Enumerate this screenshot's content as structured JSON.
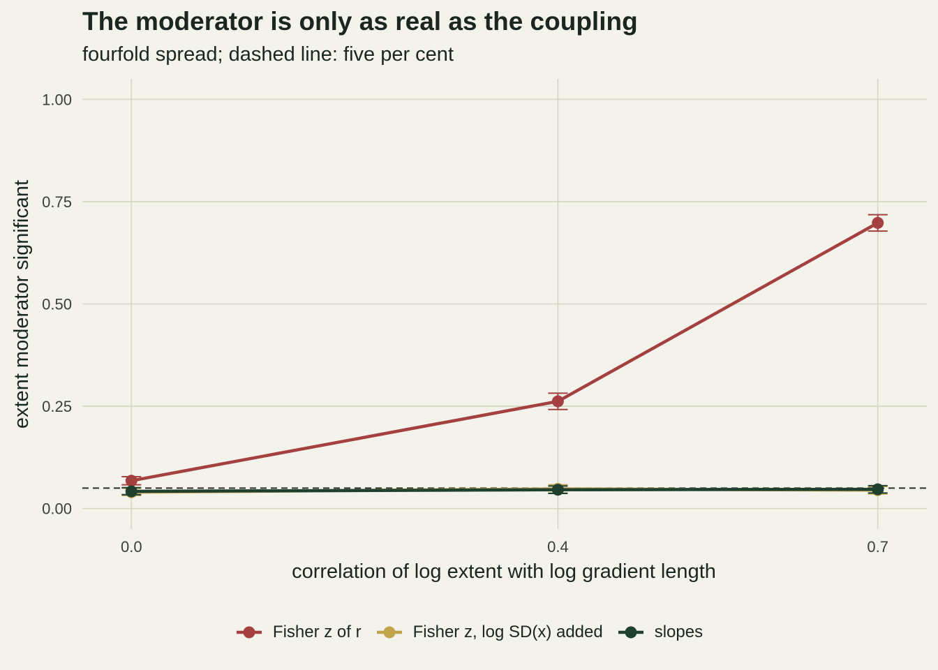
{
  "title": "The moderator is only as real as the coupling",
  "subtitle": "fourfold spread; dashed line: five per cent",
  "chart_data": {
    "type": "line",
    "title": "The moderator is only as real as the coupling",
    "subtitle": "fourfold spread; dashed line: five per cent",
    "xlabel": "correlation of log extent with log gradient length",
    "ylabel": "extent moderator significant",
    "x": [
      0.0,
      0.4,
      0.7
    ],
    "x_tick_labels": [
      "0.0",
      "0.4",
      "0.7"
    ],
    "y_ticks": [
      0.0,
      0.25,
      0.5,
      0.75,
      1.0
    ],
    "y_tick_labels": [
      "0.00",
      "0.25",
      "0.50",
      "0.75",
      "1.00"
    ],
    "xlim": [
      -0.046,
      0.746
    ],
    "ylim": [
      -0.05,
      1.05
    ],
    "reference_line": 0.05,
    "grid": true,
    "legend_position": "bottom",
    "series": [
      {
        "name": "Fisher z of r",
        "color": "#a4403f",
        "values": [
          0.068,
          0.262,
          0.698
        ],
        "error_low": [
          0.058,
          0.242,
          0.678
        ],
        "error_high": [
          0.078,
          0.282,
          0.718
        ]
      },
      {
        "name": "Fisher z, log SD(x) added",
        "color": "#c2a54b",
        "values": [
          0.04,
          0.048,
          0.045
        ],
        "error_low": [
          0.032,
          0.038,
          0.036
        ],
        "error_high": [
          0.05,
          0.058,
          0.054
        ]
      },
      {
        "name": "slopes",
        "color": "#20402f",
        "values": [
          0.042,
          0.046,
          0.047
        ],
        "error_low": [
          0.034,
          0.037,
          0.038
        ],
        "error_high": [
          0.051,
          0.055,
          0.056
        ]
      }
    ]
  }
}
